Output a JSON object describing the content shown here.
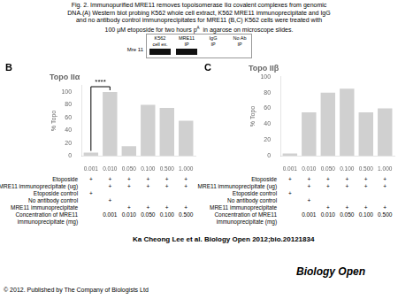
{
  "chart_data": [
    {
      "type": "bar",
      "panel": "B",
      "title": "Topo IIα",
      "y_label": "% Topo",
      "categories": [
        "0.001",
        "0.010",
        "0.050",
        "0.100",
        "0.500",
        "1.000"
      ],
      "values": [
        5,
        100,
        15,
        80,
        75,
        55
      ],
      "color": "#d0d0d0",
      "ylim": [
        0,
        110
      ],
      "yticks": [
        0,
        20,
        40,
        60,
        80,
        100
      ],
      "grid": false,
      "annotations": [
        {
          "text": "****",
          "between": [
            "0.001",
            "0.010"
          ]
        }
      ],
      "table": {
        "row_labels": [
          "Etoposide",
          "MRE11 immunoprecipitate (ug)",
          "Etoposide control",
          "No antibody control",
          "MRE11 immunoprecipitate",
          "Concentration of MRE11\nimmunoprecipitate (mg)"
        ],
        "rows": [
          [
            "+",
            "+",
            "+",
            "+",
            "+",
            "+"
          ],
          [
            null,
            "+",
            "+",
            "+",
            "+",
            "+"
          ],
          [
            "+",
            null,
            null,
            null,
            null,
            null
          ],
          [
            null,
            "+",
            null,
            null,
            null,
            null
          ],
          [
            null,
            null,
            "+",
            "+",
            "+",
            "+"
          ],
          [
            null,
            "0.001",
            "0.010",
            "0.050",
            "0.100",
            "0.500"
          ]
        ]
      }
    },
    {
      "type": "bar",
      "panel": "C",
      "title": "Topo IIβ",
      "y_label": "% Topo",
      "categories": [
        "0.001",
        "0.010",
        "0.050",
        "0.100",
        "0.500",
        "1.000"
      ],
      "values": [
        3,
        55,
        80,
        85,
        55,
        60
      ],
      "color": "#d0d0d0",
      "ylim": [
        0,
        100
      ],
      "yticks": [
        0,
        20,
        40,
        60,
        80,
        100
      ],
      "grid": false,
      "table": {
        "row_labels": [
          "Etoposide",
          "MRE11 immunoprecipitate (ug)",
          "Etoposide control",
          "No antibody control",
          "MRE11 immunoprecipitate",
          "Concentration of MRE11\nimmunoprecipitate (mg)"
        ],
        "rows": [
          [
            "+",
            "+",
            "+",
            "+",
            "+",
            "+"
          ],
          [
            null,
            "+",
            "+",
            "+",
            "+",
            "+"
          ],
          [
            "+",
            null,
            null,
            null,
            null,
            null
          ],
          [
            null,
            "+",
            null,
            null,
            null,
            null
          ],
          [
            null,
            null,
            "+",
            "+",
            "+",
            "+"
          ],
          [
            null,
            "0.001",
            "0.010",
            "0.050",
            "0.100",
            "0.500"
          ]
        ]
      }
    }
  ],
  "caption": [
    "Fig. 2. Immunopurified MRE11 removes topoisomerase IIα covalent complexes from genomic",
    "DNA.(A) Western blot probing K562 whole cell extract, K562 MRE11 immunoprecipitate and IgG",
    "and no antibody control immunoprecipitates for MRE11 (B,C) K562 cells were treated with"
  ],
  "caption_last_line": [
    "100 μM etoposide for two hours p",
    "A",
    "  in agarose on microscope slides."
  ],
  "blot": {
    "headers": [
      "K562\ncell ex.",
      "MRE11\nIP",
      "IgG\nIP",
      "No Ab\nIP"
    ],
    "row_label": "Mre 11",
    "bands": [
      true,
      true,
      false,
      false
    ]
  },
  "citation": "Ka Cheong Lee et al. Biology Open 2012;bio.20121834",
  "copyright": "© 2012. Published by The Company of Biologists Ltd",
  "journal": "Biology Open"
}
